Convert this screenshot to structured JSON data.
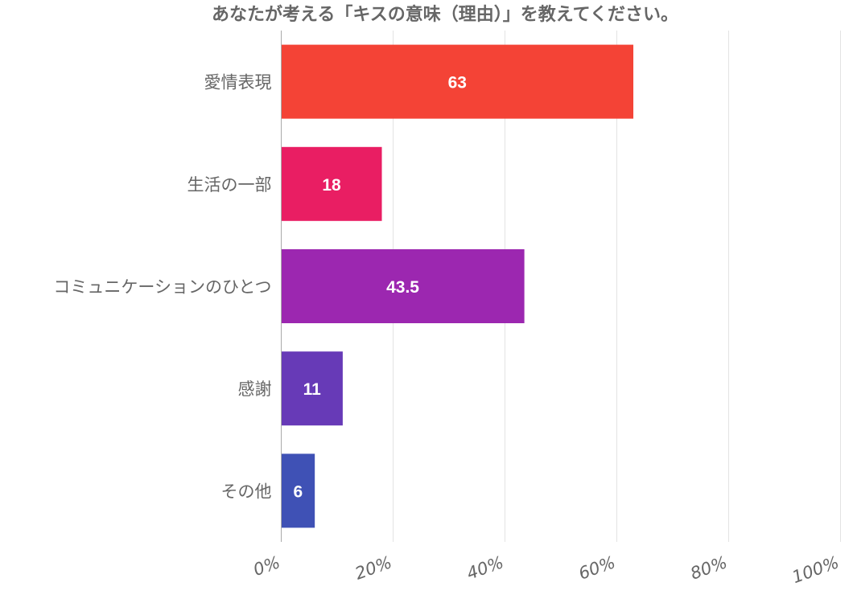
{
  "chart_data": {
    "type": "bar",
    "orientation": "horizontal",
    "title": "あなたが考える「キスの意味（理由）」を教えてください。",
    "categories": [
      "愛情表現",
      "生活の一部",
      "コミュニケーションのひとつ",
      "感謝",
      "その他"
    ],
    "values": [
      63,
      18,
      43.5,
      11,
      6
    ],
    "value_labels": [
      "63",
      "18",
      "43.5",
      "11",
      "6"
    ],
    "colors": [
      "#f44336",
      "#e91e63",
      "#9c27b0",
      "#673ab7",
      "#3f51b5"
    ],
    "xlim": [
      0,
      100
    ],
    "xticks": [
      0,
      20,
      40,
      60,
      80,
      100
    ],
    "xtick_labels": [
      "0%",
      "20%",
      "40%",
      "60%",
      "80%",
      "100%"
    ],
    "xlabel": "",
    "ylabel": "",
    "grid": true,
    "legend": "none"
  }
}
